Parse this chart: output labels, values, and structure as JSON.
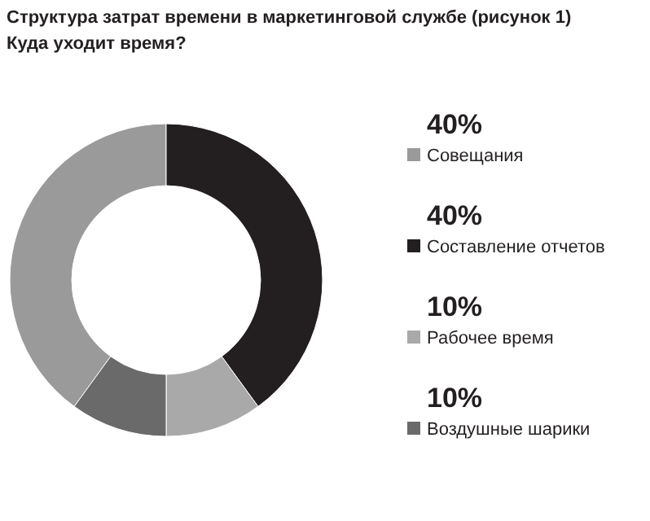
{
  "chart_data": {
    "type": "donut",
    "title": "Структура затрат времени в маркетинговой службе (рисунок 1)",
    "subtitle": "Куда уходит время?",
    "categories": [
      "Совещания",
      "Составление отчетов",
      "Рабочее время",
      "Воздушные шарики"
    ],
    "values": [
      40,
      40,
      10,
      10
    ],
    "colors": [
      "#9a9a9a",
      "#231f20",
      "#a9a9a9",
      "#6a6a6a"
    ],
    "value_labels": [
      "40%",
      "40%",
      "10%",
      "10%"
    ],
    "legend": "right"
  }
}
